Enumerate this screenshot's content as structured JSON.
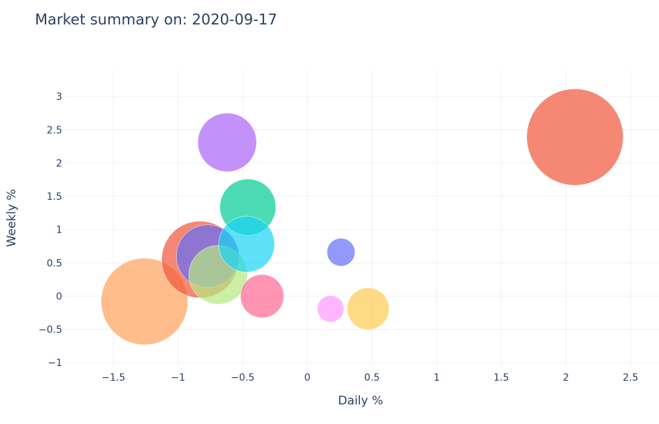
{
  "title": "Market summary on: 2020-09-17",
  "chart_data": {
    "type": "scatter",
    "title": "Market summary on: 2020-09-17",
    "xlabel": "Daily %",
    "ylabel": "Weekly %",
    "xlim": [
      -1.88,
      2.72
    ],
    "ylim": [
      -1.05,
      3.4
    ],
    "x_ticks": [
      -1.5,
      -1,
      -0.5,
      0,
      0.5,
      1,
      1.5,
      2,
      2.5
    ],
    "y_ticks": [
      -1,
      -0.5,
      0,
      0.5,
      1,
      1.5,
      2,
      2.5,
      3
    ],
    "x_tick_labels": [
      "−1.5",
      "−1",
      "−0.5",
      "0",
      "0.5",
      "1",
      "1.5",
      "2",
      "2.5"
    ],
    "y_tick_labels": [
      "−1",
      "−0.5",
      "0",
      "0.5",
      "1",
      "1.5",
      "2",
      "2.5",
      "3"
    ],
    "grid": true,
    "legend": "none",
    "points": [
      {
        "x": -1.26,
        "y": -0.08,
        "size": 62,
        "color": "#FFA15A"
      },
      {
        "x": -0.83,
        "y": 0.55,
        "size": 55,
        "color": "#EF553B"
      },
      {
        "x": -0.77,
        "y": 0.6,
        "size": 45,
        "color": "#636EFA"
      },
      {
        "x": -0.69,
        "y": 0.32,
        "size": 42,
        "color": "#B6E880"
      },
      {
        "x": -0.62,
        "y": 2.31,
        "size": 42,
        "color": "#AB63FA"
      },
      {
        "x": -0.46,
        "y": 1.34,
        "size": 40,
        "color": "#00CC96"
      },
      {
        "x": -0.47,
        "y": 0.78,
        "size": 40,
        "color": "#19D3F3"
      },
      {
        "x": -0.35,
        "y": 0.0,
        "size": 31,
        "color": "#FF6692"
      },
      {
        "x": 0.26,
        "y": 0.66,
        "size": 20,
        "color": "#636EFA"
      },
      {
        "x": 0.18,
        "y": -0.19,
        "size": 19,
        "color": "#FF97FF"
      },
      {
        "x": 0.47,
        "y": -0.19,
        "size": 30,
        "color": "#FECB52"
      },
      {
        "x": 2.07,
        "y": 2.39,
        "size": 69,
        "color": "#EF553B"
      }
    ]
  },
  "colors": {
    "grid": "#ebf0f8",
    "text": "#2a3f5f",
    "background": "#ffffff"
  }
}
